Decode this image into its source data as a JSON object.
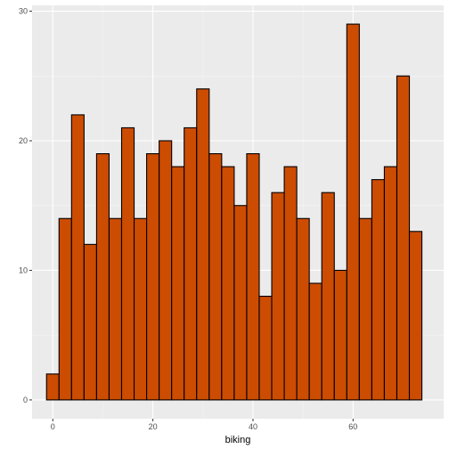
{
  "chart_data": {
    "type": "bar",
    "xlabel": "biking",
    "ylabel": "",
    "xlim": [
      -4.14,
      78.1
    ],
    "ylim": [
      -1.45,
      30.45
    ],
    "x_ticks": [
      0,
      20,
      40,
      60
    ],
    "y_ticks": [
      0,
      10,
      20,
      30
    ],
    "x_tick_labels": [
      "0",
      "20",
      "40",
      "60"
    ],
    "y_tick_labels": [
      "0",
      "10",
      "20",
      "30"
    ],
    "bin_width": 2.5,
    "bin_centers": [
      0.0,
      2.5,
      5.0,
      7.5,
      10.0,
      12.5,
      15.0,
      17.5,
      20.0,
      22.5,
      25.0,
      27.5,
      30.0,
      32.5,
      35.0,
      37.5,
      40.0,
      42.5,
      45.0,
      47.5,
      50.0,
      52.5,
      55.0,
      57.5,
      60.0,
      62.5,
      65.0,
      67.5,
      70.0,
      72.5
    ],
    "values": [
      2,
      14,
      22,
      12,
      19,
      14,
      21,
      14,
      19,
      20,
      18,
      21,
      24,
      19,
      18,
      15,
      19,
      8,
      16,
      18,
      14,
      9,
      16,
      10,
      29,
      14,
      17,
      18,
      25,
      13
    ],
    "fill_color": "#cc4c02",
    "outline_color": "#000000",
    "panel_color": "#ebebeb",
    "grid": true
  }
}
